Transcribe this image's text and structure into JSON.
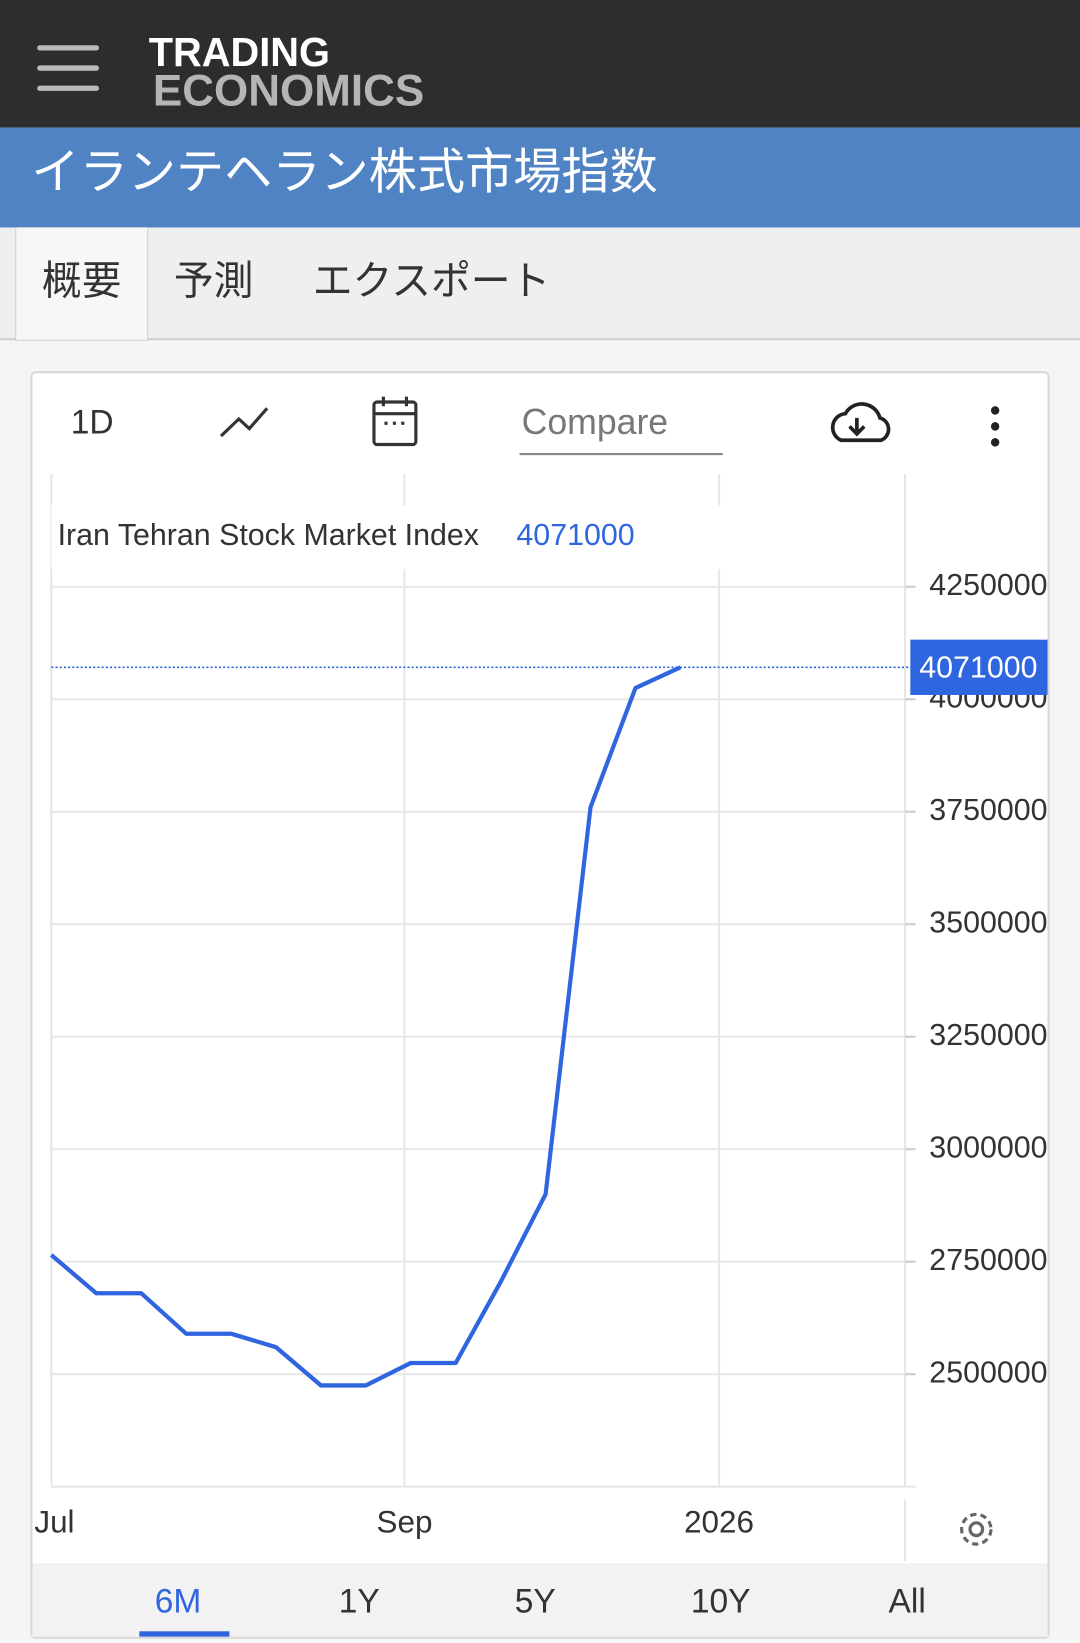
{
  "header": {
    "brand_top": "TRADING",
    "brand_bottom": "ECONOMICS",
    "title": "イランテヘラン株式市場指数"
  },
  "tabs": [
    "概要",
    "予測",
    "エクスポート"
  ],
  "toolbar": {
    "interval": "1D",
    "compare": "Compare"
  },
  "ranges": [
    "6M",
    "1Y",
    "5Y",
    "10Y",
    "All"
  ],
  "chart_data": {
    "type": "line",
    "x": [
      0,
      1,
      2,
      3,
      4,
      5,
      6,
      7,
      8,
      9,
      10,
      11,
      12,
      13,
      14
    ],
    "series": [
      {
        "name": "Iran Tehran Stock Market Index",
        "color": "#2f66e0",
        "values": [
          2765000,
          2680000,
          2680000,
          2590000,
          2590000,
          2560000,
          2475000,
          2475000,
          2525000,
          2525000,
          2705000,
          2900000,
          3760000,
          4025000,
          4071000
        ]
      }
    ],
    "xlim": [
      0,
      19
    ],
    "xticks": [
      {
        "value": 0,
        "label": "Jul"
      },
      {
        "value": 7.86,
        "label": "Sep"
      },
      {
        "value": 14.86,
        "label": "2026"
      }
    ],
    "ylim": [
      2250000,
      4500000
    ],
    "yticks": [
      2500000,
      2750000,
      3000000,
      3250000,
      3500000,
      3750000,
      4000000,
      4250000
    ],
    "grid": true
  }
}
